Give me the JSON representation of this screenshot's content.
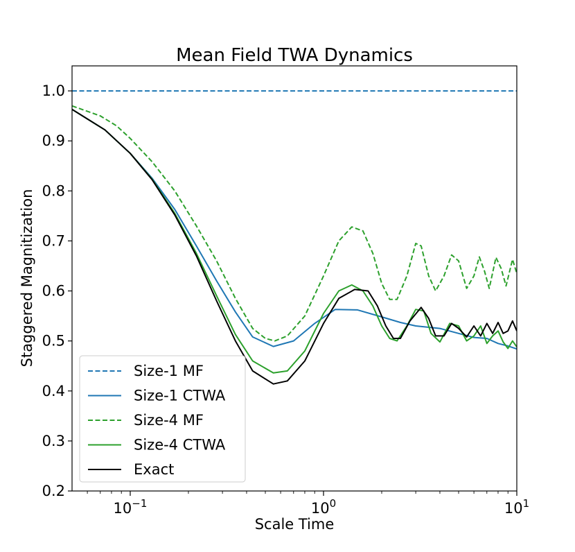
{
  "chart_data": {
    "type": "line",
    "title": "Mean Field TWA Dynamics",
    "xlabel": "Scale Time",
    "ylabel": "Staggered Magnitization",
    "xscale": "log",
    "xlim": [
      0.05,
      10
    ],
    "ylim": [
      0.2,
      1.05
    ],
    "x_ticks": [
      {
        "value": 0.1,
        "base": "10",
        "exp": "−1"
      },
      {
        "value": 1,
        "base": "10",
        "exp": "0"
      },
      {
        "value": 10,
        "base": "10",
        "exp": "1"
      }
    ],
    "y_ticks": [
      "0.2",
      "0.3",
      "0.4",
      "0.5",
      "0.6",
      "0.7",
      "0.8",
      "0.9",
      "1.0"
    ],
    "legend_position": "lower-left",
    "series": [
      {
        "name": "Size-1 MF",
        "color": "#1f77b4",
        "style": "dashed",
        "points": [
          [
            0.05,
            1.0
          ],
          [
            10,
            1.0
          ]
        ]
      },
      {
        "name": "Size-1 CTWA",
        "color": "#1f77b4",
        "style": "solid",
        "points": [
          [
            0.05,
            0.963
          ],
          [
            0.074,
            0.922
          ],
          [
            0.1,
            0.875
          ],
          [
            0.13,
            0.825
          ],
          [
            0.17,
            0.763
          ],
          [
            0.22,
            0.69
          ],
          [
            0.28,
            0.62
          ],
          [
            0.35,
            0.558
          ],
          [
            0.43,
            0.508
          ],
          [
            0.55,
            0.489
          ],
          [
            0.7,
            0.5
          ],
          [
            0.9,
            0.535
          ],
          [
            1.15,
            0.563
          ],
          [
            1.5,
            0.562
          ],
          [
            2.0,
            0.548
          ],
          [
            2.5,
            0.537
          ],
          [
            3.0,
            0.53
          ],
          [
            4.0,
            0.525
          ],
          [
            5.0,
            0.515
          ],
          [
            6.0,
            0.507
          ],
          [
            7.0,
            0.505
          ],
          [
            8.0,
            0.495
          ],
          [
            9.0,
            0.49
          ],
          [
            10.0,
            0.484
          ]
        ]
      },
      {
        "name": "Size-4 MF",
        "color": "#2ca02c",
        "style": "dashed",
        "points": [
          [
            0.05,
            0.97
          ],
          [
            0.07,
            0.95
          ],
          [
            0.085,
            0.93
          ],
          [
            0.1,
            0.905
          ],
          [
            0.13,
            0.858
          ],
          [
            0.17,
            0.8
          ],
          [
            0.22,
            0.73
          ],
          [
            0.28,
            0.66
          ],
          [
            0.35,
            0.585
          ],
          [
            0.43,
            0.525
          ],
          [
            0.5,
            0.505
          ],
          [
            0.56,
            0.5
          ],
          [
            0.65,
            0.51
          ],
          [
            0.8,
            0.55
          ],
          [
            1.0,
            0.63
          ],
          [
            1.2,
            0.7
          ],
          [
            1.4,
            0.728
          ],
          [
            1.6,
            0.72
          ],
          [
            1.8,
            0.675
          ],
          [
            2.0,
            0.615
          ],
          [
            2.2,
            0.583
          ],
          [
            2.4,
            0.583
          ],
          [
            2.7,
            0.63
          ],
          [
            3.0,
            0.695
          ],
          [
            3.2,
            0.69
          ],
          [
            3.5,
            0.63
          ],
          [
            3.8,
            0.6
          ],
          [
            4.2,
            0.63
          ],
          [
            4.6,
            0.672
          ],
          [
            5.0,
            0.66
          ],
          [
            5.5,
            0.605
          ],
          [
            6.0,
            0.63
          ],
          [
            6.4,
            0.668
          ],
          [
            6.8,
            0.64
          ],
          [
            7.2,
            0.605
          ],
          [
            7.8,
            0.667
          ],
          [
            8.3,
            0.645
          ],
          [
            8.8,
            0.61
          ],
          [
            9.5,
            0.663
          ],
          [
            10.0,
            0.635
          ]
        ]
      },
      {
        "name": "Size-4 CTWA",
        "color": "#2ca02c",
        "style": "solid",
        "points": [
          [
            0.05,
            0.963
          ],
          [
            0.074,
            0.922
          ],
          [
            0.1,
            0.875
          ],
          [
            0.13,
            0.823
          ],
          [
            0.17,
            0.755
          ],
          [
            0.22,
            0.675
          ],
          [
            0.28,
            0.59
          ],
          [
            0.35,
            0.513
          ],
          [
            0.43,
            0.46
          ],
          [
            0.55,
            0.436
          ],
          [
            0.65,
            0.44
          ],
          [
            0.8,
            0.48
          ],
          [
            1.0,
            0.555
          ],
          [
            1.2,
            0.6
          ],
          [
            1.4,
            0.612
          ],
          [
            1.6,
            0.6
          ],
          [
            1.8,
            0.57
          ],
          [
            2.0,
            0.53
          ],
          [
            2.2,
            0.505
          ],
          [
            2.4,
            0.5
          ],
          [
            2.7,
            0.53
          ],
          [
            3.0,
            0.563
          ],
          [
            3.3,
            0.56
          ],
          [
            3.6,
            0.515
          ],
          [
            4.0,
            0.498
          ],
          [
            4.5,
            0.535
          ],
          [
            5.0,
            0.53
          ],
          [
            5.5,
            0.5
          ],
          [
            6.0,
            0.51
          ],
          [
            6.5,
            0.53
          ],
          [
            7.0,
            0.495
          ],
          [
            7.5,
            0.51
          ],
          [
            8.0,
            0.52
          ],
          [
            8.5,
            0.498
          ],
          [
            9.0,
            0.485
          ],
          [
            9.5,
            0.5
          ],
          [
            10.0,
            0.488
          ]
        ]
      },
      {
        "name": "Exact",
        "color": "#000000",
        "style": "solid",
        "points": [
          [
            0.05,
            0.963
          ],
          [
            0.074,
            0.922
          ],
          [
            0.1,
            0.875
          ],
          [
            0.13,
            0.822
          ],
          [
            0.17,
            0.752
          ],
          [
            0.22,
            0.67
          ],
          [
            0.28,
            0.58
          ],
          [
            0.35,
            0.5
          ],
          [
            0.43,
            0.44
          ],
          [
            0.55,
            0.414
          ],
          [
            0.65,
            0.42
          ],
          [
            0.8,
            0.46
          ],
          [
            1.0,
            0.535
          ],
          [
            1.2,
            0.585
          ],
          [
            1.45,
            0.603
          ],
          [
            1.7,
            0.6
          ],
          [
            1.9,
            0.57
          ],
          [
            2.1,
            0.53
          ],
          [
            2.3,
            0.505
          ],
          [
            2.5,
            0.505
          ],
          [
            2.8,
            0.54
          ],
          [
            3.2,
            0.567
          ],
          [
            3.5,
            0.545
          ],
          [
            3.8,
            0.51
          ],
          [
            4.2,
            0.51
          ],
          [
            4.6,
            0.535
          ],
          [
            5.0,
            0.525
          ],
          [
            5.5,
            0.508
          ],
          [
            6.0,
            0.53
          ],
          [
            6.5,
            0.51
          ],
          [
            7.0,
            0.535
          ],
          [
            7.5,
            0.515
          ],
          [
            8.0,
            0.537
          ],
          [
            8.5,
            0.515
          ],
          [
            9.0,
            0.52
          ],
          [
            9.5,
            0.54
          ],
          [
            10.0,
            0.52
          ]
        ]
      }
    ]
  }
}
